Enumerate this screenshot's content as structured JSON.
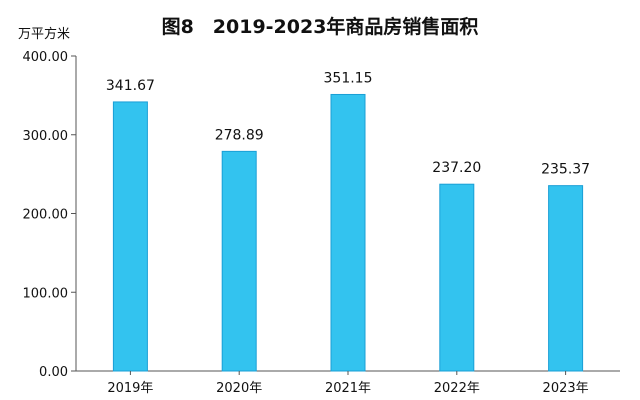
{
  "chart_data": {
    "type": "bar",
    "title": "图8　2019-2023年商品房销售面积",
    "ylabel": "万平方米",
    "xlabel": "",
    "categories": [
      "2019年",
      "2020年",
      "2021年",
      "2022年",
      "2023年"
    ],
    "values": [
      341.67,
      278.89,
      351.15,
      237.2,
      235.37
    ],
    "value_labels": [
      "341.67",
      "278.89",
      "351.15",
      "237.20",
      "235.37"
    ],
    "ylim": [
      0,
      400
    ],
    "yticks": [
      0,
      100,
      200,
      300,
      400
    ],
    "ytick_labels": [
      "0.00",
      "100.00",
      "200.00",
      "300.00",
      "400.00"
    ],
    "grid": false,
    "legend": "none",
    "bar_color": "#33c3ef",
    "bar_edge_color": "#1a9fd6"
  }
}
